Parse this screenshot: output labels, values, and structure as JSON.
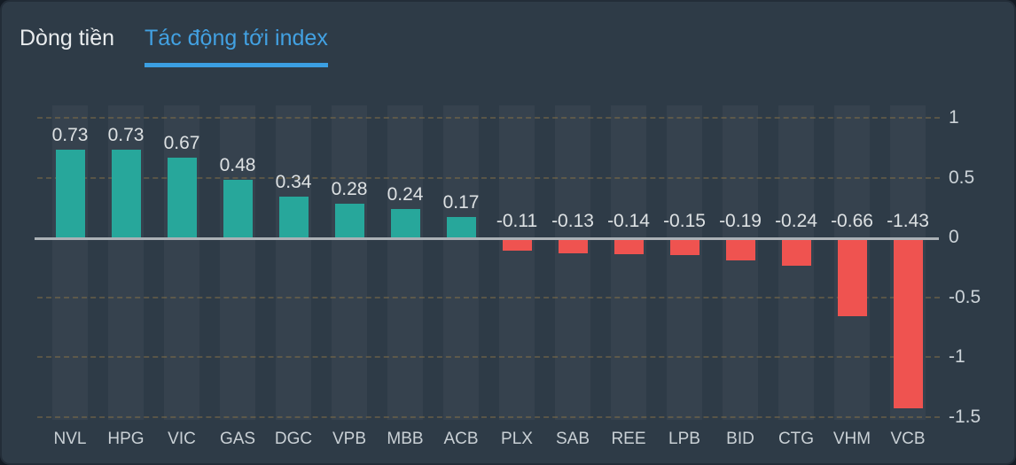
{
  "header": {
    "tabs": [
      {
        "label": "Dòng tiền",
        "active": false
      },
      {
        "label": "Tác động tới index",
        "active": true
      }
    ]
  },
  "chart_data": {
    "type": "bar",
    "title": "",
    "xlabel": "",
    "ylabel": "",
    "categories": [
      "NVL",
      "HPG",
      "VIC",
      "GAS",
      "DGC",
      "VPB",
      "MBB",
      "ACB",
      "PLX",
      "SAB",
      "REE",
      "LPB",
      "BID",
      "CTG",
      "VHM",
      "VCB"
    ],
    "values": [
      0.73,
      0.73,
      0.67,
      0.48,
      0.34,
      0.28,
      0.24,
      0.17,
      -0.11,
      -0.13,
      -0.14,
      -0.15,
      -0.19,
      -0.24,
      -0.66,
      -1.43
    ],
    "value_labels": [
      "0.73",
      "0.73",
      "0.67",
      "0.48",
      "0.34",
      "0.28",
      "0.24",
      "0.17",
      "-0.11",
      "-0.13",
      "-0.14",
      "-0.15",
      "-0.19",
      "-0.24",
      "-0.66",
      "-1.43"
    ],
    "y_ticks": [
      {
        "label": "1",
        "value": 1
      },
      {
        "label": "0.5",
        "value": 0.5
      },
      {
        "label": "0",
        "value": 0
      },
      {
        "label": "-0.5",
        "value": -0.5
      },
      {
        "label": "-1",
        "value": -1
      },
      {
        "label": "-1.5",
        "value": -1.5
      }
    ],
    "ylim": [
      -1.5,
      1
    ],
    "grid": "horizontal-dashed",
    "legend": "none",
    "bar_colors": {
      "positive": "#27a79b",
      "negative": "#ef5350"
    }
  },
  "colors": {
    "outer_bg": "#141c25",
    "panel_bg": "#2e3b47",
    "panel_border": "#232d38",
    "column_band": "#36424e",
    "zero_line": "#abb1b6",
    "grid_dash": "#8e7646",
    "tab_active": "#42a1e2",
    "tab_underline": "#3b9fe2",
    "tab_inactive": "#e9ecee",
    "value_label": "#dde1e3",
    "axis_label": "#ccd3d8"
  }
}
